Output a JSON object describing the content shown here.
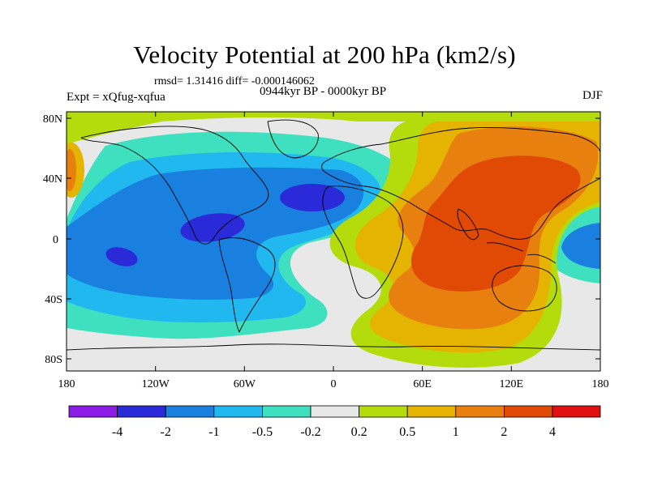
{
  "title": "Velocity Potential at 200 hPa (km2/s)",
  "rmsd_text": "rmsd= 1.31416 diff= -0.000146062",
  "experiment": "Expt = xQfug-xqfua",
  "period": "0944kyr BP - 0000kyr BP",
  "season": "DJF",
  "lat_ticks": [
    "80N",
    "40N",
    "0",
    "40S",
    "80S"
  ],
  "lon_ticks": [
    "180",
    "120W",
    "60W",
    "0",
    "60E",
    "120E",
    "180"
  ],
  "colorbar": {
    "labels": [
      "-4",
      "-2",
      "-1",
      "-0.5",
      "-0.2",
      "0.2",
      "0.5",
      "1",
      "2",
      "4"
    ],
    "colors": [
      "#8a1ce6",
      "#2a2ad8",
      "#1a80e0",
      "#20b8ee",
      "#3ee0c0",
      "#e8e8e8",
      "#b4dc0c",
      "#e4b400",
      "#e88010",
      "#e04a04",
      "#e01010"
    ]
  },
  "palette": {
    "neutral": "#e8e8e8",
    "teal": "#3ee0c0",
    "cyan": "#20b8ee",
    "blue": "#1a80e0",
    "navy": "#2a2ad8",
    "lime": "#b4dc0c",
    "gold": "#e4b400",
    "orange": "#e88010",
    "redorange": "#e04a04"
  }
}
